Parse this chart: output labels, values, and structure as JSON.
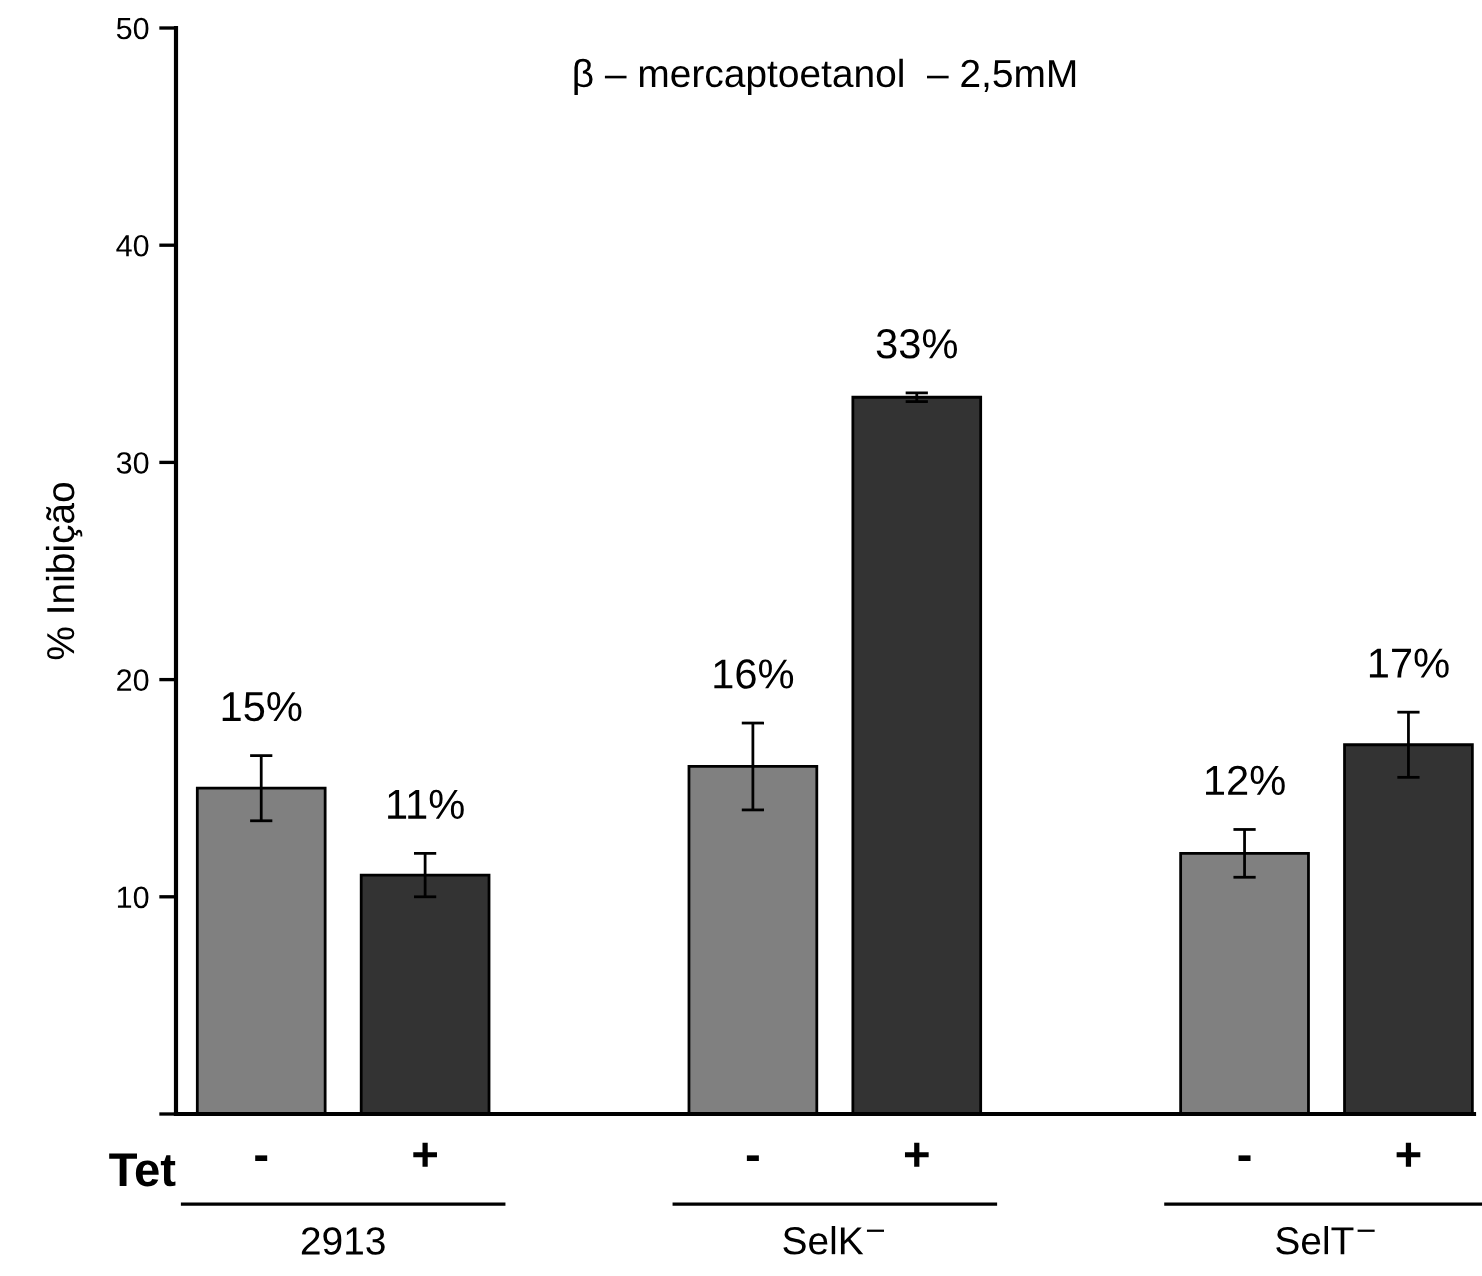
{
  "chart_data": {
    "type": "bar",
    "title": "β – mercaptoetanol  – 2,5mM",
    "ylabel": "% Inibição",
    "categories": [
      "-",
      "+",
      null,
      "-",
      "+",
      null,
      "-",
      "+"
    ],
    "values": [
      15,
      11,
      null,
      16,
      33,
      null,
      12,
      17
    ],
    "errors": [
      1.5,
      1.0,
      null,
      2.0,
      0.2,
      null,
      1.1,
      1.5
    ],
    "colors": [
      "#808080",
      "#333333",
      null,
      "#808080",
      "#333333",
      null,
      "#808080",
      "#333333"
    ],
    "value_labels": [
      "15%",
      "11%",
      null,
      "16%",
      "33%",
      null,
      "12%",
      "17%"
    ],
    "annotations": [
      "Tet",
      "2913",
      "SelK$^{−}$",
      "SelT$^{−}$"
    ],
    "ylim": [
      0,
      50
    ],
    "yticks": [
      {
        "value": 0,
        "label": null
      },
      10,
      20,
      30,
      40,
      50
    ],
    "grid": false,
    "legend": false
  }
}
